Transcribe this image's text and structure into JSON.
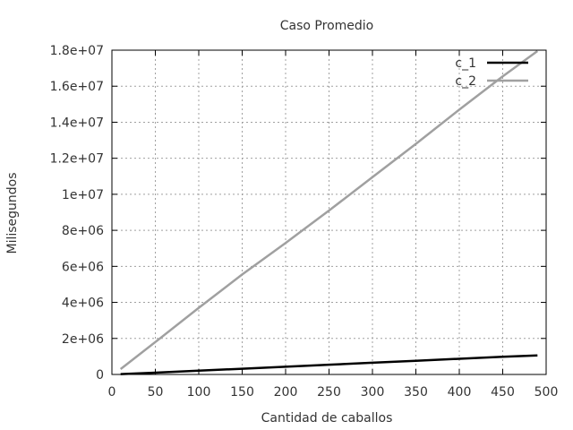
{
  "chart_data": {
    "type": "line",
    "title": "Caso Promedio",
    "xlabel": "Cantidad de caballos",
    "ylabel": "Milisegundos",
    "xlim": [
      0,
      500
    ],
    "ylim": [
      0,
      18000000
    ],
    "xticks": [
      0,
      50,
      100,
      150,
      200,
      250,
      300,
      350,
      400,
      450,
      500
    ],
    "yticks": [
      0,
      2000000,
      4000000,
      6000000,
      8000000,
      10000000,
      12000000,
      14000000,
      16000000,
      18000000
    ],
    "xtick_labels": [
      "0",
      "50",
      "100",
      "150",
      "200",
      "250",
      "300",
      "350",
      "400",
      "450",
      "500"
    ],
    "ytick_labels": [
      "0",
      "2e+06",
      "4e+06",
      "6e+06",
      "8e+06",
      "1e+07",
      "1.2e+07",
      "1.4e+07",
      "1.6e+07",
      "1.8e+07"
    ],
    "grid": true,
    "legend_position": "top-right",
    "series": [
      {
        "name": "c_1",
        "color": "#000000",
        "x": [
          10,
          50,
          100,
          150,
          200,
          250,
          300,
          350,
          400,
          450,
          490
        ],
        "y": [
          20000,
          100000,
          210000,
          320000,
          430000,
          540000,
          650000,
          760000,
          870000,
          980000,
          1060000
        ]
      },
      {
        "name": "c_2",
        "color": "#a0a0a0",
        "x": [
          10,
          50,
          100,
          150,
          200,
          250,
          300,
          350,
          400,
          450,
          490
        ],
        "y": [
          300000,
          1800000,
          3700000,
          5550000,
          7300000,
          9100000,
          10950000,
          12800000,
          14700000,
          16550000,
          17950000
        ]
      }
    ]
  }
}
